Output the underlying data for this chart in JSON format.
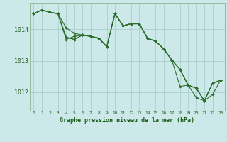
{
  "background_color": "#cce8e8",
  "grid_color": "#aacece",
  "line_color": "#2d6e2d",
  "marker_color": "#2d6e2d",
  "title": "Graphe pression niveau de la mer (hPa)",
  "ytick_labels": [
    "1012",
    "1013",
    "1014"
  ],
  "yticks": [
    1012,
    1013,
    1014
  ],
  "ylim": [
    1011.4,
    1014.85
  ],
  "xlim": [
    -0.5,
    23.5
  ],
  "series": [
    [
      1014.5,
      1014.62,
      1014.55,
      1014.5,
      1013.68,
      1013.78,
      1013.82,
      1013.78,
      1013.72,
      1013.45,
      1014.5,
      1014.12,
      1014.18,
      1014.18,
      1013.72,
      1013.62,
      1013.38,
      1013.02,
      1012.18,
      1012.22,
      1011.82,
      1011.72,
      1011.92,
      1012.38
    ],
    [
      1014.5,
      1014.62,
      1014.55,
      1014.5,
      1014.05,
      1013.88,
      1013.82,
      1013.78,
      1013.72,
      1013.45,
      1014.5,
      1014.12,
      1014.18,
      1014.18,
      1013.72,
      1013.62,
      1013.38,
      1013.02,
      1012.72,
      1012.22,
      1012.12,
      1011.72,
      1012.28,
      1012.38
    ],
    [
      1014.5,
      1014.62,
      1014.55,
      1014.5,
      1013.75,
      1013.68,
      1013.82,
      1013.78,
      1013.72,
      1013.45,
      1014.5,
      1014.12,
      1014.18,
      1014.18,
      1013.72,
      1013.62,
      1013.38,
      1013.02,
      1012.72,
      1012.22,
      1012.12,
      1011.72,
      1012.28,
      1012.38
    ],
    [
      1014.5,
      1014.62,
      1014.55,
      1014.5,
      1013.75,
      1013.68,
      1013.82,
      1013.78,
      1013.72,
      1013.45,
      1014.5,
      1014.12,
      1014.18,
      1014.18,
      1013.72,
      1013.62,
      1013.38,
      1013.02,
      1012.72,
      1012.22,
      1012.12,
      1011.72,
      1012.28,
      1012.38
    ]
  ]
}
